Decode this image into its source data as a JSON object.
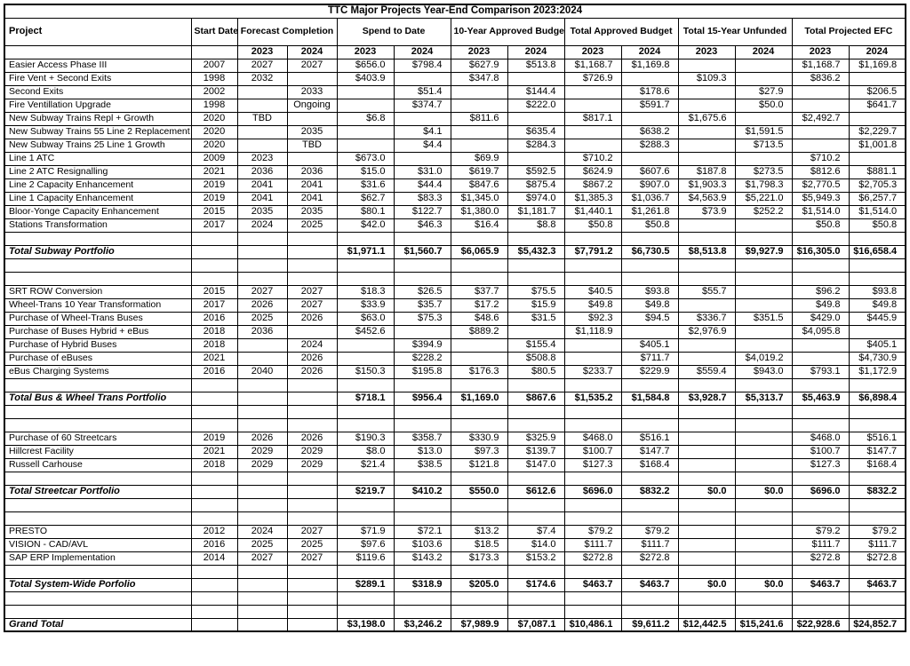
{
  "title": "TTC Major Projects Year-End Comparison 2023:2024",
  "header": {
    "project": "Project",
    "start_date": "Start Date",
    "groups": [
      "Forecast Completion",
      "Spend to Date",
      "10-Year Approved Budget",
      "Total Approved Budget",
      "Total 15-Year Unfunded",
      "Total Projected EFC"
    ],
    "years": [
      "2023",
      "2024"
    ]
  },
  "rows": [
    {
      "type": "data",
      "label": "Easier Access Phase III",
      "cells": [
        "2007",
        "2027",
        "2027",
        "$656.0",
        "$798.4",
        "$627.9",
        "$513.8",
        "$1,168.7",
        "$1,169.8",
        "",
        "",
        "$1,168.7",
        "$1,169.8"
      ]
    },
    {
      "type": "data",
      "label": "Fire Vent + Second Exits",
      "cells": [
        "1998",
        "2032",
        "",
        "$403.9",
        "",
        "$347.8",
        "",
        "$726.9",
        "",
        "$109.3",
        "",
        "$836.2",
        ""
      ]
    },
    {
      "type": "data",
      "label": "Second Exits",
      "cells": [
        "2002",
        "",
        "2033",
        "",
        "$51.4",
        "",
        "$144.4",
        "",
        "$178.6",
        "",
        "$27.9",
        "",
        "$206.5"
      ]
    },
    {
      "type": "data",
      "label": "Fire Ventillation Upgrade",
      "cells": [
        "1998",
        "",
        "Ongoing",
        "",
        "$374.7",
        "",
        "$222.0",
        "",
        "$591.7",
        "",
        "$50.0",
        "",
        "$641.7"
      ]
    },
    {
      "type": "data",
      "label": "New Subway Trains Repl + Growth",
      "cells": [
        "2020",
        "TBD",
        "",
        "$6.8",
        "",
        "$811.6",
        "",
        "$817.1",
        "",
        "$1,675.6",
        "",
        "$2,492.7",
        ""
      ]
    },
    {
      "type": "data",
      "label": "New Subway Trains 55 Line 2 Replacement",
      "cells": [
        "2020",
        "",
        "2035",
        "",
        "$4.1",
        "",
        "$635.4",
        "",
        "$638.2",
        "",
        "$1,591.5",
        "",
        "$2,229.7"
      ]
    },
    {
      "type": "data",
      "label": "New Subway Trains 25 Line 1 Growth",
      "cells": [
        "2020",
        "",
        "TBD",
        "",
        "$4.4",
        "",
        "$284.3",
        "",
        "$288.3",
        "",
        "$713.5",
        "",
        "$1,001.8"
      ]
    },
    {
      "type": "data",
      "label": "Line 1 ATC",
      "cells": [
        "2009",
        "2023",
        "",
        "$673.0",
        "",
        "$69.9",
        "",
        "$710.2",
        "",
        "",
        "",
        "$710.2",
        ""
      ]
    },
    {
      "type": "data",
      "label": "Line 2 ATC Resignalling",
      "cells": [
        "2021",
        "2036",
        "2036",
        "$15.0",
        "$31.0",
        "$619.7",
        "$592.5",
        "$624.9",
        "$607.6",
        "$187.8",
        "$273.5",
        "$812.6",
        "$881.1"
      ]
    },
    {
      "type": "data",
      "label": "Line 2 Capacity Enhancement",
      "cells": [
        "2019",
        "2041",
        "2041",
        "$31.6",
        "$44.4",
        "$847.6",
        "$875.4",
        "$867.2",
        "$907.0",
        "$1,903.3",
        "$1,798.3",
        "$2,770.5",
        "$2,705.3"
      ]
    },
    {
      "type": "data",
      "label": "Line 1 Capacity Enhancement",
      "cells": [
        "2019",
        "2041",
        "2041",
        "$62.7",
        "$83.3",
        "$1,345.0",
        "$974.0",
        "$1,385.3",
        "$1,036.7",
        "$4,563.9",
        "$5,221.0",
        "$5,949.3",
        "$6,257.7"
      ]
    },
    {
      "type": "data",
      "label": "Bloor-Yonge Capacity Enhancement",
      "cells": [
        "2015",
        "2035",
        "2035",
        "$80.1",
        "$122.7",
        "$1,380.0",
        "$1,181.7",
        "$1,440.1",
        "$1,261.8",
        "$73.9",
        "$252.2",
        "$1,514.0",
        "$1,514.0"
      ]
    },
    {
      "type": "data",
      "label": "Stations Transformation",
      "cells": [
        "2017",
        "2024",
        "2025",
        "$42.0",
        "$46.3",
        "$16.4",
        "$8.8",
        "$50.8",
        "$50.8",
        "",
        "",
        "$50.8",
        "$50.8"
      ]
    },
    {
      "type": "blank"
    },
    {
      "type": "total",
      "label": "Total Subway Portfolio",
      "cells": [
        "",
        "",
        "",
        "$1,971.1",
        "$1,560.7",
        "$6,065.9",
        "$5,432.3",
        "$7,791.2",
        "$6,730.5",
        "$8,513.8",
        "$9,927.9",
        "$16,305.0",
        "$16,658.4"
      ]
    },
    {
      "type": "blank"
    },
    {
      "type": "blank"
    },
    {
      "type": "data",
      "label": "SRT ROW Conversion",
      "cells": [
        "2015",
        "2027",
        "2027",
        "$18.3",
        "$26.5",
        "$37.7",
        "$75.5",
        "$40.5",
        "$93.8",
        "$55.7",
        "",
        "$96.2",
        "$93.8"
      ]
    },
    {
      "type": "data",
      "label": "Wheel-Trans 10 Year Transformation",
      "cells": [
        "2017",
        "2026",
        "2027",
        "$33.9",
        "$35.7",
        "$17.2",
        "$15.9",
        "$49.8",
        "$49.8",
        "",
        "",
        "$49.8",
        "$49.8"
      ]
    },
    {
      "type": "data",
      "label": "Purchase of Wheel-Trans Buses",
      "cells": [
        "2016",
        "2025",
        "2026",
        "$63.0",
        "$75.3",
        "$48.6",
        "$31.5",
        "$92.3",
        "$94.5",
        "$336.7",
        "$351.5",
        "$429.0",
        "$445.9"
      ]
    },
    {
      "type": "data",
      "label": "Purchase of Buses Hybrid + eBus",
      "cells": [
        "2018",
        "2036",
        "",
        "$452.6",
        "",
        "$889.2",
        "",
        "$1,118.9",
        "",
        "$2,976.9",
        "",
        "$4,095.8",
        ""
      ]
    },
    {
      "type": "data",
      "label": "Purchase of Hybrid Buses",
      "cells": [
        "2018",
        "",
        "2024",
        "",
        "$394.9",
        "",
        "$155.4",
        "",
        "$405.1",
        "",
        "",
        "",
        "$405.1"
      ]
    },
    {
      "type": "data",
      "label": "Purchase of eBuses",
      "cells": [
        "2021",
        "",
        "2026",
        "",
        "$228.2",
        "",
        "$508.8",
        "",
        "$711.7",
        "",
        "$4,019.2",
        "",
        "$4,730.9"
      ]
    },
    {
      "type": "data",
      "label": "eBus Charging Systems",
      "cells": [
        "2016",
        "2040",
        "2026",
        "$150.3",
        "$195.8",
        "$176.3",
        "$80.5",
        "$233.7",
        "$229.9",
        "$559.4",
        "$943.0",
        "$793.1",
        "$1,172.9"
      ]
    },
    {
      "type": "blank"
    },
    {
      "type": "total",
      "label": "Total Bus & Wheel Trans Portfolio",
      "cells": [
        "",
        "",
        "",
        "$718.1",
        "$956.4",
        "$1,169.0",
        "$867.6",
        "$1,535.2",
        "$1,584.8",
        "$3,928.7",
        "$5,313.7",
        "$5,463.9",
        "$6,898.4"
      ]
    },
    {
      "type": "blank"
    },
    {
      "type": "blank"
    },
    {
      "type": "data",
      "label": "Purchase of 60 Streetcars",
      "cells": [
        "2019",
        "2026",
        "2026",
        "$190.3",
        "$358.7",
        "$330.9",
        "$325.9",
        "$468.0",
        "$516.1",
        "",
        "",
        "$468.0",
        "$516.1"
      ]
    },
    {
      "type": "data",
      "label": "Hillcrest Facility",
      "cells": [
        "2021",
        "2029",
        "2029",
        "$8.0",
        "$13.0",
        "$97.3",
        "$139.7",
        "$100.7",
        "$147.7",
        "",
        "",
        "$100.7",
        "$147.7"
      ]
    },
    {
      "type": "data",
      "label": "Russell Carhouse",
      "cells": [
        "2018",
        "2029",
        "2029",
        "$21.4",
        "$38.5",
        "$121.8",
        "$147.0",
        "$127.3",
        "$168.4",
        "",
        "",
        "$127.3",
        "$168.4"
      ]
    },
    {
      "type": "blank"
    },
    {
      "type": "total",
      "label": "Total Streetcar Portfolio",
      "cells": [
        "",
        "",
        "",
        "$219.7",
        "$410.2",
        "$550.0",
        "$612.6",
        "$696.0",
        "$832.2",
        "$0.0",
        "$0.0",
        "$696.0",
        "$832.2"
      ]
    },
    {
      "type": "blank"
    },
    {
      "type": "blank"
    },
    {
      "type": "data",
      "label": "PRESTO",
      "cells": [
        "2012",
        "2024",
        "2027",
        "$71.9",
        "$72.1",
        "$13.2",
        "$7.4",
        "$79.2",
        "$79.2",
        "",
        "",
        "$79.2",
        "$79.2"
      ]
    },
    {
      "type": "data",
      "label": "VISION - CAD/AVL",
      "cells": [
        "2016",
        "2025",
        "2025",
        "$97.6",
        "$103.6",
        "$18.5",
        "$14.0",
        "$111.7",
        "$111.7",
        "",
        "",
        "$111.7",
        "$111.7"
      ]
    },
    {
      "type": "data",
      "label": "SAP ERP Implementation",
      "cells": [
        "2014",
        "2027",
        "2027",
        "$119.6",
        "$143.2",
        "$173.3",
        "$153.2",
        "$272.8",
        "$272.8",
        "",
        "",
        "$272.8",
        "$272.8"
      ]
    },
    {
      "type": "blank"
    },
    {
      "type": "total",
      "label": "Total System-Wide Porfolio",
      "cells": [
        "",
        "",
        "",
        "$289.1",
        "$318.9",
        "$205.0",
        "$174.6",
        "$463.7",
        "$463.7",
        "$0.0",
        "$0.0",
        "$463.7",
        "$463.7"
      ]
    },
    {
      "type": "blank"
    },
    {
      "type": "blank"
    },
    {
      "type": "grand",
      "label": "Grand Total",
      "cells": [
        "",
        "",
        "",
        "$3,198.0",
        "$3,246.2",
        "$7,989.9",
        "$7,087.1",
        "$10,486.1",
        "$9,611.2",
        "$12,442.5",
        "$15,241.6",
        "$22,928.6",
        "$24,852.7"
      ]
    }
  ]
}
